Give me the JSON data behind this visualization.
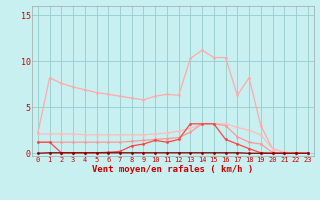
{
  "x": [
    0,
    1,
    2,
    3,
    4,
    5,
    6,
    7,
    8,
    9,
    10,
    11,
    12,
    13,
    14,
    15,
    16,
    17,
    18,
    19,
    20,
    21,
    22,
    23
  ],
  "line_rafales": [
    2.2,
    8.2,
    7.6,
    7.2,
    6.9,
    6.6,
    6.4,
    6.2,
    6.0,
    5.8,
    6.2,
    6.4,
    6.3,
    10.3,
    11.2,
    10.4,
    10.4,
    6.3,
    8.2,
    3.0,
    0.5,
    0.1,
    0.0,
    0.0
  ],
  "line_moyen": [
    2.1,
    2.1,
    2.1,
    2.1,
    2.0,
    2.0,
    2.0,
    2.0,
    2.0,
    2.0,
    2.1,
    2.2,
    2.4,
    2.7,
    3.2,
    3.2,
    3.2,
    2.8,
    2.5,
    2.0,
    0.5,
    0.1,
    0.05,
    0.0
  ],
  "line_med": [
    1.2,
    1.2,
    1.2,
    1.2,
    1.2,
    1.2,
    1.2,
    1.2,
    1.3,
    1.4,
    1.5,
    1.6,
    1.7,
    2.3,
    3.2,
    3.2,
    3.0,
    1.8,
    1.2,
    1.0,
    0.1,
    0.0,
    0.0,
    0.0
  ],
  "line_freq": [
    1.2,
    1.2,
    0.05,
    0.05,
    0.05,
    0.05,
    0.1,
    0.2,
    0.8,
    1.0,
    1.4,
    1.2,
    1.5,
    3.2,
    3.2,
    3.2,
    1.5,
    1.0,
    0.5,
    0.05,
    0.0,
    0.0,
    0.0,
    0.0
  ],
  "line_dark": [
    0.0,
    0.05,
    0.05,
    0.05,
    0.05,
    0.05,
    0.05,
    0.05,
    0.05,
    0.05,
    0.05,
    0.05,
    0.05,
    0.05,
    0.05,
    0.05,
    0.05,
    0.05,
    0.0,
    0.0,
    0.0,
    0.0,
    0.0,
    0.0
  ],
  "color_rafales": "#ffaaaa",
  "color_moyen": "#ffbbbb",
  "color_med": "#ff9999",
  "color_freq": "#ff4444",
  "color_dark": "#880000",
  "bg_color": "#c8f0f0",
  "grid_color": "#99cccc",
  "xlabel": "Vent moyen/en rafales ( km/h )",
  "yticks": [
    0,
    5,
    10,
    15
  ],
  "xticks": [
    0,
    1,
    2,
    3,
    4,
    5,
    6,
    7,
    8,
    9,
    10,
    11,
    12,
    13,
    14,
    15,
    16,
    17,
    18,
    19,
    20,
    21,
    22,
    23
  ],
  "ylim": [
    -0.3,
    16
  ],
  "xlim": [
    -0.5,
    23.5
  ]
}
